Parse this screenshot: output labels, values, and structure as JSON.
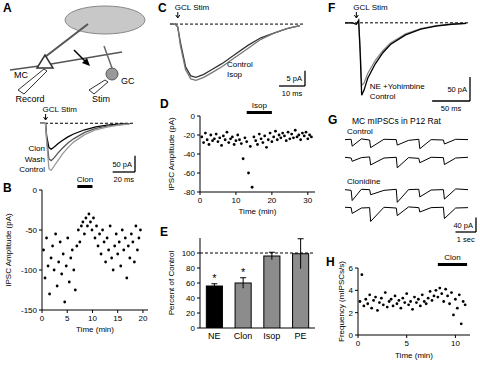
{
  "diagram": {
    "title": "A",
    "labels": [
      "MC",
      "GC",
      "Record",
      "Stim"
    ]
  },
  "chart_data": [
    {
      "type": "line",
      "tick_labels": false,
      "baseline": 0,
      "x": [
        0,
        2,
        4,
        5,
        6,
        8,
        10,
        13,
        16,
        20,
        25,
        30,
        40,
        50,
        60,
        70,
        80
      ],
      "xlim": [
        0,
        85
      ],
      "ylim": [
        -150,
        10
      ],
      "series": [
        {
          "name": "Clon",
          "color": "#000000",
          "values": [
            0,
            0,
            0,
            -2,
            -40,
            -75,
            -80,
            -72,
            -63,
            -53,
            -42,
            -33,
            -20,
            -11,
            -6,
            -3,
            -1
          ]
        },
        {
          "name": "Wash",
          "color": "#555555",
          "values": [
            0,
            0,
            0,
            -2,
            -50,
            -110,
            -115,
            -105,
            -92,
            -77,
            -61,
            -48,
            -28,
            -16,
            -9,
            -5,
            -2
          ]
        },
        {
          "name": "Control",
          "color": "#999999",
          "values": [
            0,
            0,
            0,
            -2,
            -60,
            -140,
            -145,
            -130,
            -115,
            -95,
            -75,
            -58,
            -35,
            -20,
            -12,
            -6,
            -3
          ]
        }
      ],
      "annotations": [
        {
          "text": "GCL Stim",
          "x": 5
        }
      ],
      "scale_bars": {
        "x": 20,
        "x_label": "20 ms",
        "y": 50,
        "y_label": "50 pA"
      }
    },
    {
      "type": "scatter",
      "title": "B",
      "marker": "circle",
      "color": "#000000",
      "x_label": "Time (min)",
      "y_label": "IPSC Amplitude (pA)",
      "xlim": [
        0,
        21
      ],
      "ylim": [
        -150,
        0
      ],
      "xticks": [
        0,
        5,
        10,
        15,
        20
      ],
      "yticks": [
        0,
        -50,
        -100,
        -150
      ],
      "drug_bar": {
        "label": "Clon",
        "start": 7,
        "end": 10
      },
      "x": [
        0.3,
        0.6,
        0.9,
        1.2,
        1.5,
        1.8,
        2.1,
        2.4,
        2.7,
        3.0,
        3.3,
        3.6,
        3.9,
        4.2,
        4.5,
        4.8,
        5.1,
        5.4,
        5.7,
        6.0,
        6.3,
        6.6,
        6.9,
        7.2,
        7.5,
        7.8,
        8.1,
        8.4,
        8.7,
        9.0,
        9.3,
        9.6,
        9.9,
        10.2,
        10.5,
        10.8,
        11.1,
        11.4,
        11.7,
        12.0,
        12.3,
        12.6,
        12.9,
        13.2,
        13.5,
        13.8,
        14.1,
        14.4,
        14.7,
        15.0,
        15.3,
        15.6,
        15.9,
        16.2,
        16.5,
        16.8,
        17.1,
        17.4,
        17.7,
        18.0,
        18.3,
        18.6,
        18.9,
        19.2,
        19.5
      ],
      "values": [
        -75,
        -110,
        -60,
        -95,
        -130,
        -85,
        -70,
        -100,
        -55,
        -120,
        -90,
        -65,
        -105,
        -80,
        -140,
        -95,
        -60,
        -115,
        -85,
        -75,
        -100,
        -125,
        -70,
        -50,
        -65,
        -45,
        -40,
        -55,
        -35,
        -45,
        -30,
        -40,
        -50,
        -35,
        -60,
        -45,
        -70,
        -55,
        -80,
        -50,
        -65,
        -90,
        -60,
        -75,
        -45,
        -85,
        -100,
        -70,
        -55,
        -80,
        -65,
        -95,
        -50,
        -75,
        -60,
        -110,
        -70,
        -85,
        -55,
        -65,
        -90,
        -45,
        -75,
        -60,
        -50
      ]
    },
    {
      "type": "line",
      "title": "C",
      "tick_labels": false,
      "baseline": 0,
      "x": [
        0,
        2,
        3,
        4,
        6,
        8,
        10,
        13,
        16,
        20,
        25,
        30,
        35,
        40,
        45,
        50
      ],
      "xlim": [
        0,
        52
      ],
      "ylim": [
        -20,
        2
      ],
      "series": [
        {
          "name": "Control",
          "color": "#333333",
          "values": [
            0,
            0,
            -1,
            -6,
            -14,
            -17,
            -17.5,
            -16.5,
            -15,
            -13,
            -10,
            -7,
            -4.5,
            -3,
            -1.5,
            -0.5
          ]
        },
        {
          "name": "Isop",
          "color": "#777777",
          "values": [
            0,
            0,
            -1,
            -7,
            -15,
            -18,
            -18.5,
            -17.5,
            -16,
            -14,
            -11,
            -8,
            -5,
            -3,
            -1.5,
            -0.5
          ]
        }
      ],
      "annotations": [
        {
          "text": "GCL Stim",
          "x": 3
        }
      ],
      "scale_bars": {
        "x": 10,
        "x_label": "10 ms",
        "y": 5,
        "y_label": "5 pA"
      }
    },
    {
      "type": "scatter",
      "title": "D",
      "marker": "circle",
      "color": "#000000",
      "x_label": "Time (min)",
      "y_label": "IPSC Amplitude (pA)",
      "xlim": [
        0,
        32
      ],
      "ylim": [
        -80,
        0
      ],
      "xticks": [
        0,
        10,
        20,
        30
      ],
      "yticks": [
        0,
        -20,
        -40,
        -60,
        -80
      ],
      "drug_bar": {
        "label": "Isop",
        "start": 13,
        "end": 20
      },
      "x": [
        0.5,
        1,
        1.5,
        2,
        2.5,
        3,
        3.5,
        4,
        4.5,
        5,
        5.5,
        6,
        6.5,
        7,
        7.5,
        8,
        8.5,
        9,
        9.5,
        10,
        10.5,
        11,
        11.5,
        12,
        12.5,
        13,
        13.5,
        14,
        14.5,
        15,
        15.5,
        16,
        16.5,
        17,
        17.5,
        18,
        18.5,
        19,
        19.5,
        20,
        20.5,
        21,
        21.5,
        22,
        22.5,
        23,
        23.5,
        24,
        24.5,
        25,
        25.5,
        26,
        26.5,
        27,
        27.5,
        28,
        28.5,
        29,
        29.5,
        30,
        30.5,
        31
      ],
      "values": [
        -22,
        -28,
        -18,
        -25,
        -30,
        -20,
        -26,
        -24,
        -19,
        -27,
        -23,
        -31,
        -21,
        -25,
        -17,
        -28,
        -24,
        -22,
        -30,
        -26,
        -20,
        -25,
        -29,
        -45,
        -23,
        -27,
        -60,
        -32,
        -75,
        -22,
        -26,
        -30,
        -19,
        -24,
        -28,
        -21,
        -33,
        -25,
        -18,
        -27,
        -22,
        -16,
        -25,
        -20,
        -23,
        -18,
        -21,
        -26,
        -17,
        -24,
        -19,
        -23,
        -15,
        -22,
        -20,
        -25,
        -18,
        -21,
        -17,
        -24,
        -20,
        -22
      ]
    },
    {
      "type": "bar",
      "title": "E",
      "y_label": "Percent of Control",
      "categories": [
        "NE",
        "Clon",
        "Isop",
        "PE"
      ],
      "values": [
        56,
        60,
        96,
        99
      ],
      "errors": [
        3,
        7,
        5,
        20
      ],
      "colors": [
        "#000000",
        "#8c8c8c",
        "#8c8c8c",
        "#8c8c8c"
      ],
      "ylim": [
        0,
        120
      ],
      "yticks": [
        0,
        20,
        40,
        60,
        80,
        100
      ],
      "reference_line": 100,
      "significance": [
        "*",
        "*",
        null,
        null
      ]
    },
    {
      "type": "line",
      "title": "F",
      "tick_labels": false,
      "baseline": 0,
      "x": [
        0,
        10,
        15,
        18,
        20,
        22,
        25,
        30,
        40,
        50,
        60,
        80,
        100,
        120,
        140,
        160
      ],
      "xlim": [
        0,
        165
      ],
      "ylim": [
        -160,
        10
      ],
      "series": [
        {
          "name": "NE +Yohimbine",
          "color": "#888888",
          "values": [
            0,
            0,
            -3,
            5,
            -55,
            -130,
            -125,
            -105,
            -78,
            -58,
            -42,
            -23,
            -12,
            -6,
            -3,
            -1
          ]
        },
        {
          "name": "Control",
          "color": "#000000",
          "values": [
            0,
            0,
            -3,
            5,
            -60,
            -150,
            -140,
            -115,
            -85,
            -62,
            -45,
            -25,
            -13,
            -7,
            -3,
            -1
          ]
        }
      ],
      "annotations": [
        {
          "text": "GCL Stim",
          "x": 15
        }
      ],
      "scale_bars": {
        "x": 50,
        "x_label": "50 ms",
        "y": 50,
        "y_label": "50 pA"
      }
    },
    {
      "type": "line",
      "title": "G",
      "subtitle": "MC mIPSCs in P12 Rat",
      "tick_labels": false,
      "x": [
        0,
        0.3,
        0.35,
        0.8,
        1.2,
        1.25,
        1.9,
        2.5,
        2.55,
        3.1,
        3.6,
        3.65,
        4.2,
        4.8,
        4.85,
        5.4,
        6
      ],
      "xlim": [
        0,
        6
      ],
      "ylim": [
        -45,
        10
      ],
      "series": [
        {
          "name": "Control",
          "color": "#000000",
          "values": [
            0,
            1,
            -18,
            2,
            -1,
            -22,
            1,
            0,
            -15,
            -2,
            1,
            -25,
            0,
            -1,
            -12,
            1,
            0
          ]
        },
        {
          "color": "#000000",
          "values": [
            1,
            -1,
            -10,
            0,
            2,
            -20,
            -1,
            1,
            -28,
            0,
            -2,
            -14,
            1,
            0,
            -19,
            -1,
            1
          ]
        },
        {
          "name": "Clonidine",
          "color": "#000000",
          "values": [
            0,
            -2,
            -30,
            1,
            0,
            -14,
            -2,
            1,
            -35,
            0,
            1,
            -20,
            -1,
            0,
            -26,
            2,
            0
          ]
        },
        {
          "color": "#000000",
          "values": [
            1,
            0,
            -16,
            -1,
            0,
            -38,
            1,
            -1,
            -22,
            2,
            0,
            -12,
            0,
            1,
            -30,
            -1,
            0
          ]
        }
      ],
      "scale_bars": {
        "x": 1,
        "x_label": "1 sec",
        "y": 40,
        "y_label": "40 pA"
      }
    },
    {
      "type": "scatter",
      "title": "H",
      "marker": "circle",
      "color": "#000000",
      "x_label": "Time (min)",
      "y_label": "Frequency (mIPSCs/s)",
      "xlim": [
        0,
        11.5
      ],
      "ylim": [
        0,
        6
      ],
      "xticks": [
        0,
        5,
        10
      ],
      "yticks": [
        0,
        2,
        4,
        6
      ],
      "drug_bar": {
        "label": "Clon",
        "start": 8.2,
        "end": 11.2
      },
      "x": [
        0.2,
        0.4,
        0.6,
        0.8,
        1,
        1.2,
        1.4,
        1.6,
        1.8,
        2,
        2.2,
        2.4,
        2.6,
        2.8,
        3,
        3.2,
        3.4,
        3.6,
        3.8,
        4,
        4.2,
        4.4,
        4.6,
        4.8,
        5,
        5.2,
        5.4,
        5.6,
        5.8,
        6,
        6.2,
        6.4,
        6.6,
        6.8,
        7,
        7.2,
        7.4,
        7.6,
        7.8,
        8,
        8.2,
        8.4,
        8.6,
        8.8,
        9,
        9.2,
        9.4,
        9.6,
        9.8,
        10,
        10.2,
        10.4,
        10.6,
        10.8,
        11
      ],
      "values": [
        3.0,
        5.4,
        2.6,
        3.2,
        2.8,
        3.6,
        2.4,
        3.1,
        3.4,
        2.2,
        2.9,
        3.3,
        2.7,
        3.8,
        2.5,
        3.0,
        3.2,
        2.6,
        3.5,
        2.8,
        3.1,
        2.4,
        3.3,
        2.9,
        3.7,
        2.7,
        3.0,
        2.3,
        3.4,
        2.9,
        3.2,
        2.6,
        3.6,
        3.0,
        2.8,
        3.3,
        3.9,
        3.1,
        3.5,
        4.0,
        3.4,
        4.2,
        3.7,
        3.0,
        4.1,
        3.5,
        2.8,
        3.8,
        1.8,
        3.2,
        2.4,
        3.6,
        1.0,
        3.0,
        2.7
      ]
    }
  ]
}
